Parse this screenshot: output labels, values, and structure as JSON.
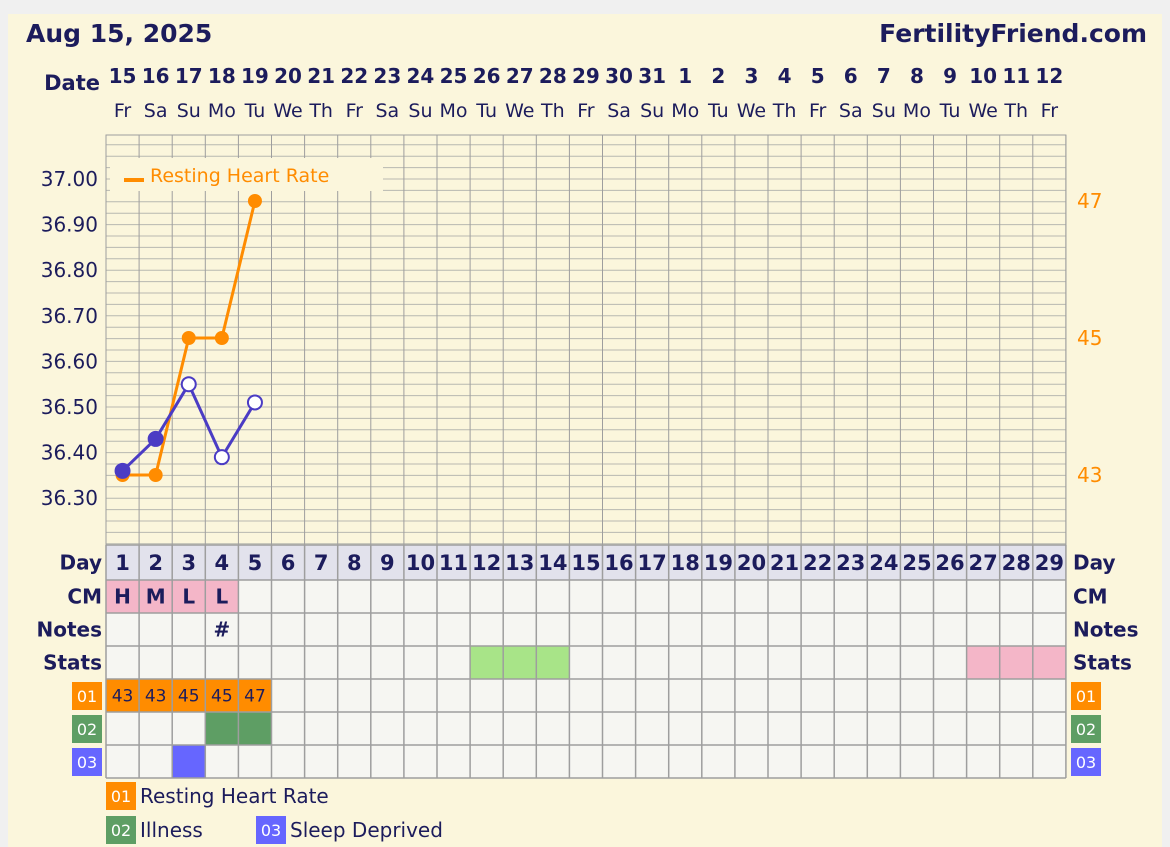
{
  "header": {
    "date": "Aug 15, 2025",
    "site": "FertilityFriend.com",
    "date_label": "Date"
  },
  "colors": {
    "background": "#fbf6dc",
    "grid": "#9e9e9e",
    "heart_rate": "#ff8c00",
    "temperature": "#4b3cc4",
    "label_navy": "#1c1c5c",
    "cm_fill": "#f4b6c8",
    "stats_green": "#a8e488",
    "stats_pink": "#f4b6c8",
    "code01": "#ff8c00",
    "code02": "#5e9e64",
    "code03": "#6666ff"
  },
  "chart_data": {
    "type": "line",
    "dates": [
      "15",
      "16",
      "17",
      "18",
      "19",
      "20",
      "21",
      "22",
      "23",
      "24",
      "25",
      "26",
      "27",
      "28",
      "29",
      "30",
      "31",
      "1",
      "2",
      "3",
      "4",
      "5",
      "6",
      "7",
      "8",
      "9",
      "10",
      "11",
      "12"
    ],
    "weekdays": [
      "Fr",
      "Sa",
      "Su",
      "Mo",
      "Tu",
      "We",
      "Th",
      "Fr",
      "Sa",
      "Su",
      "Mo",
      "Tu",
      "We",
      "Th",
      "Fr",
      "Sa",
      "Su",
      "Mo",
      "Tu",
      "We",
      "Th",
      "Fr",
      "Sa",
      "Su",
      "Mo",
      "Tu",
      "We",
      "Th",
      "Fr"
    ],
    "days": [
      "1",
      "2",
      "3",
      "4",
      "5",
      "6",
      "7",
      "8",
      "9",
      "10",
      "11",
      "12",
      "13",
      "14",
      "15",
      "16",
      "17",
      "18",
      "19",
      "20",
      "21",
      "22",
      "23",
      "24",
      "25",
      "26",
      "27",
      "28",
      "29"
    ],
    "left_axis": {
      "ticks": [
        "37.00",
        "36.90",
        "36.80",
        "36.70",
        "36.60",
        "36.50",
        "36.40",
        "36.30"
      ],
      "range": [
        36.25,
        37.05
      ]
    },
    "right_axis": {
      "ticks": [
        "47",
        "45",
        "43"
      ],
      "range": [
        42.0,
        48.0
      ]
    },
    "legend": {
      "label": "Resting Heart Rate",
      "placement": "top-left"
    },
    "series": [
      {
        "name": "Resting Heart Rate",
        "axis": "right",
        "color": "#ff8c00",
        "points": [
          {
            "day": 1,
            "value": 43
          },
          {
            "day": 2,
            "value": 43
          },
          {
            "day": 3,
            "value": 45
          },
          {
            "day": 4,
            "value": 45
          },
          {
            "day": 5,
            "value": 47
          }
        ]
      },
      {
        "axis": "left",
        "color": "#4b3cc4",
        "points": [
          {
            "day": 1,
            "value": 36.36,
            "filled": true
          },
          {
            "day": 2,
            "value": 36.43,
            "filled": true
          },
          {
            "day": 3,
            "value": 36.55,
            "filled": false
          },
          {
            "day": 4,
            "value": 36.39,
            "filled": false
          },
          {
            "day": 5,
            "value": 36.51,
            "filled": false
          }
        ]
      }
    ]
  },
  "rows": {
    "day_label": "Day",
    "cm_label": "CM",
    "notes_label": "Notes",
    "stats_label": "Stats",
    "cm": [
      {
        "day": 1,
        "text": "H"
      },
      {
        "day": 2,
        "text": "M"
      },
      {
        "day": 3,
        "text": "L"
      },
      {
        "day": 4,
        "text": "L"
      }
    ],
    "notes": [
      {
        "day": 4,
        "text": "#"
      }
    ],
    "stats_green_days": [
      12,
      13,
      14
    ],
    "stats_pink_days": [
      27,
      28,
      29
    ],
    "code_rows": [
      {
        "code": "01",
        "color": "#ff8c00",
        "cells": [
          {
            "day": 1,
            "text": "43"
          },
          {
            "day": 2,
            "text": "43"
          },
          {
            "day": 3,
            "text": "45"
          },
          {
            "day": 4,
            "text": "45"
          },
          {
            "day": 5,
            "text": "47"
          }
        ]
      },
      {
        "code": "02",
        "color": "#5e9e64",
        "cells": [
          {
            "day": 4,
            "text": ""
          },
          {
            "day": 5,
            "text": ""
          }
        ]
      },
      {
        "code": "03",
        "color": "#6666ff",
        "cells": [
          {
            "day": 3,
            "text": ""
          }
        ]
      }
    ]
  },
  "footer_legend": [
    {
      "code": "01",
      "label": "Resting Heart Rate",
      "color": "#ff8c00"
    },
    {
      "code": "02",
      "label": "Illness",
      "color": "#5e9e64"
    },
    {
      "code": "03",
      "label": "Sleep Deprived",
      "color": "#6666ff"
    }
  ]
}
